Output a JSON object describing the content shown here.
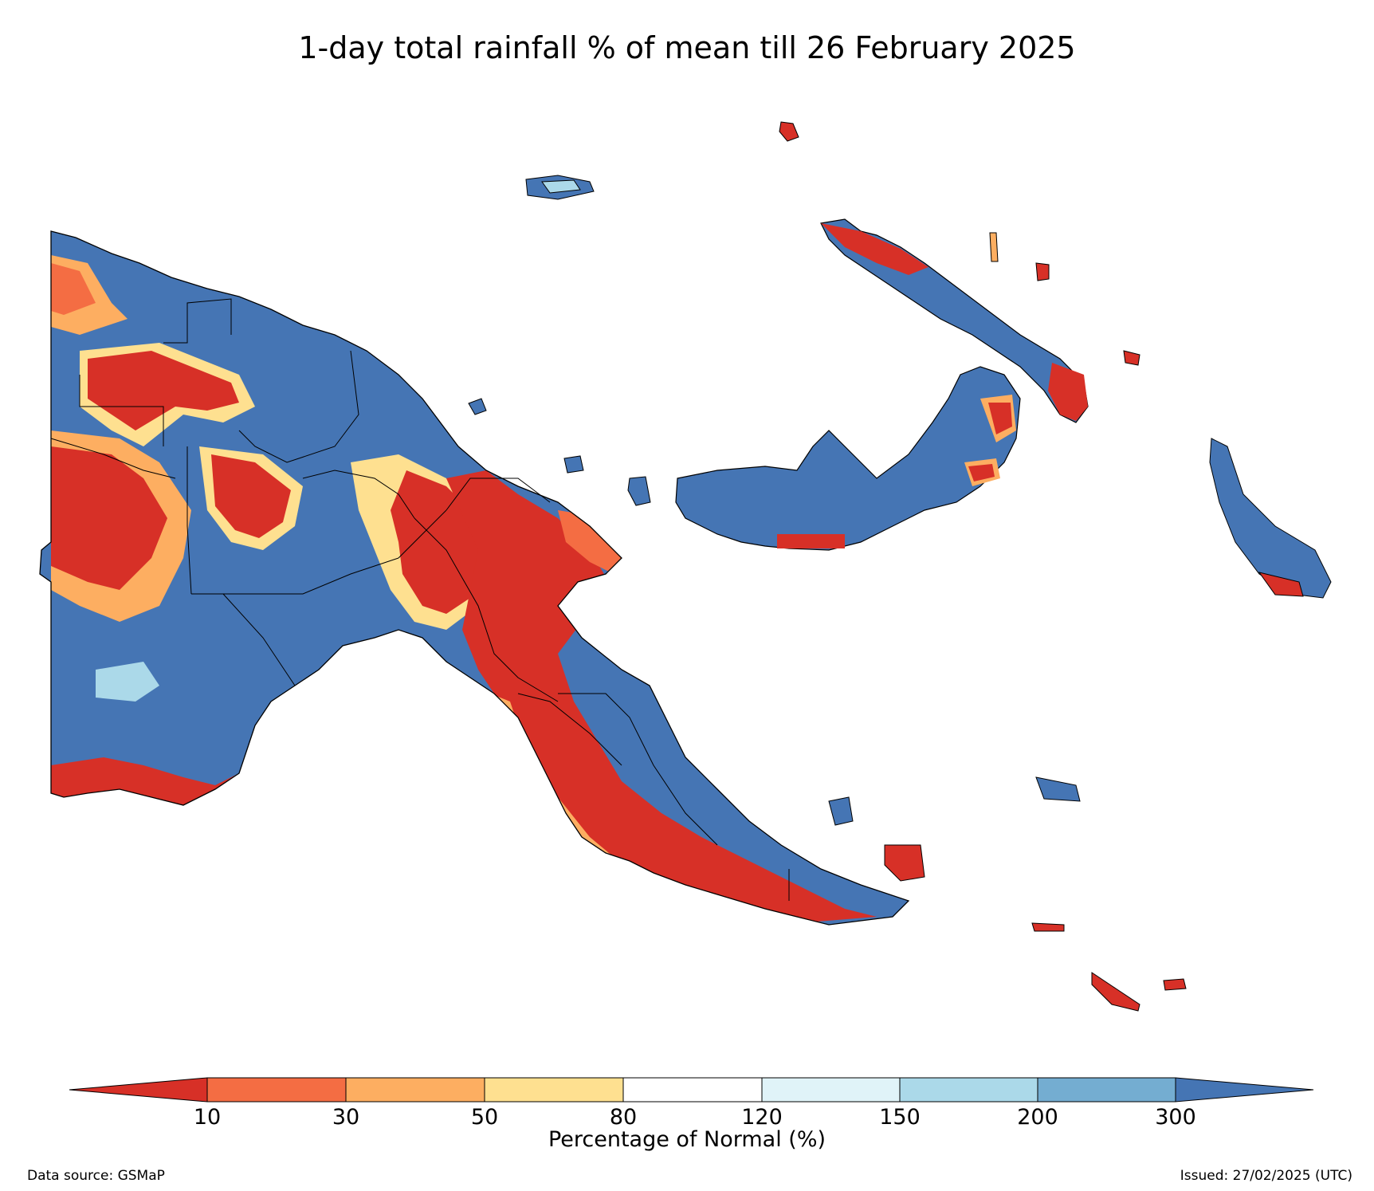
{
  "title": "1-day total rainfall % of mean till 26 February 2025",
  "colorbar": {
    "label": "Percentage of Normal (%)",
    "ticks": [
      "10",
      "30",
      "50",
      "80",
      "120",
      "150",
      "200",
      "300"
    ],
    "colors": {
      "below_10": "#d73027",
      "10_30": "#f46d43",
      "30_50": "#fdae61",
      "50_80": "#fee090",
      "80_120": "#ffffff",
      "120_150": "#e0f3f8",
      "150_200": "#abd9e9",
      "200_300": "#74add1",
      "above_300": "#4575b4"
    }
  },
  "footer": {
    "source": "Data source: GSMaP",
    "issued": "Issued: 27/02/2025 (UTC)"
  }
}
